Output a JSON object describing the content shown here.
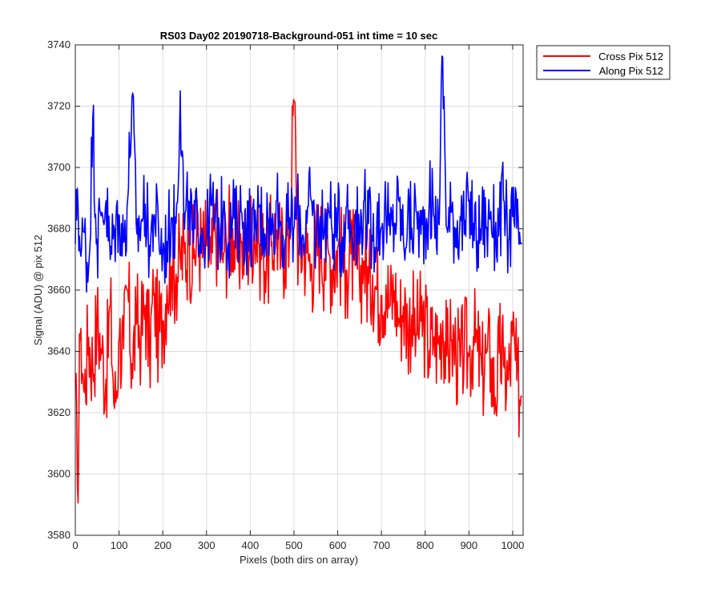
{
  "chart_data": {
    "type": "line",
    "title": "RS03 Day02 20190718-Background-051 int time = 10 sec",
    "xlabel": "Pixels (both dirs on array)",
    "ylabel": "Signal (ADU) @ pix 512",
    "xlim": [
      0,
      1024
    ],
    "ylim": [
      3580,
      3740
    ],
    "xticks": [
      0,
      100,
      200,
      300,
      400,
      500,
      600,
      700,
      800,
      900,
      1000
    ],
    "yticks": [
      3580,
      3600,
      3620,
      3640,
      3660,
      3680,
      3700,
      3720,
      3740
    ],
    "grid": true,
    "legend_position": "outside-top-right",
    "series": [
      {
        "name": "Cross Pix 512",
        "color": "#ff0000",
        "x": [
          0,
          5,
          12,
          20,
          30,
          40,
          50,
          60,
          70,
          80,
          90,
          100,
          110,
          120,
          130,
          140,
          150,
          160,
          170,
          180,
          190,
          200,
          210,
          220,
          230,
          240,
          250,
          260,
          270,
          280,
          290,
          300,
          310,
          320,
          330,
          340,
          350,
          360,
          370,
          380,
          390,
          400,
          410,
          420,
          430,
          440,
          450,
          460,
          470,
          480,
          490,
          500,
          510,
          520,
          530,
          540,
          550,
          560,
          570,
          580,
          590,
          600,
          610,
          620,
          630,
          640,
          650,
          660,
          670,
          680,
          690,
          700,
          710,
          720,
          730,
          740,
          750,
          760,
          770,
          780,
          790,
          800,
          810,
          820,
          830,
          840,
          850,
          860,
          870,
          880,
          890,
          900,
          910,
          920,
          930,
          940,
          950,
          960,
          970,
          980,
          990,
          1000,
          1010,
          1020
        ],
        "y": [
          3630,
          3595,
          3650,
          3625,
          3645,
          3635,
          3650,
          3640,
          3630,
          3655,
          3620,
          3645,
          3640,
          3660,
          3635,
          3650,
          3645,
          3655,
          3640,
          3660,
          3645,
          3650,
          3662,
          3668,
          3665,
          3670,
          3672,
          3675,
          3670,
          3678,
          3672,
          3675,
          3668,
          3680,
          3675,
          3672,
          3678,
          3680,
          3670,
          3676,
          3672,
          3678,
          3680,
          3675,
          3672,
          3670,
          3676,
          3680,
          3672,
          3675,
          3678,
          3726,
          3670,
          3675,
          3672,
          3668,
          3674,
          3676,
          3670,
          3672,
          3668,
          3674,
          3670,
          3666,
          3672,
          3668,
          3664,
          3670,
          3662,
          3665,
          3660,
          3658,
          3662,
          3655,
          3660,
          3650,
          3655,
          3648,
          3652,
          3645,
          3650,
          3648,
          3640,
          3645,
          3642,
          3650,
          3638,
          3644,
          3640,
          3635,
          3642,
          3638,
          3645,
          3640,
          3632,
          3640,
          3638,
          3625,
          3640,
          3635,
          3630,
          3645,
          3630,
          3625
        ]
      },
      {
        "name": "Along Pix 512",
        "color": "#0000ff",
        "x": [
          0,
          5,
          12,
          20,
          30,
          40,
          50,
          60,
          70,
          80,
          90,
          100,
          110,
          120,
          130,
          140,
          150,
          160,
          170,
          180,
          190,
          200,
          210,
          220,
          230,
          240,
          250,
          260,
          270,
          280,
          290,
          300,
          310,
          320,
          330,
          340,
          350,
          360,
          370,
          380,
          390,
          400,
          410,
          420,
          430,
          440,
          450,
          460,
          470,
          480,
          490,
          500,
          510,
          520,
          530,
          540,
          550,
          560,
          570,
          580,
          590,
          600,
          610,
          620,
          630,
          640,
          650,
          660,
          670,
          680,
          690,
          700,
          710,
          720,
          730,
          740,
          750,
          760,
          770,
          780,
          790,
          800,
          810,
          820,
          830,
          840,
          850,
          860,
          870,
          880,
          890,
          900,
          910,
          920,
          930,
          940,
          950,
          960,
          970,
          980,
          990,
          1000,
          1010,
          1020
        ],
        "y": [
          3675,
          3694,
          3670,
          3680,
          3665,
          3716,
          3675,
          3685,
          3690,
          3670,
          3680,
          3685,
          3675,
          3690,
          3724,
          3678,
          3682,
          3688,
          3674,
          3685,
          3680,
          3672,
          3676,
          3684,
          3680,
          3725,
          3678,
          3690,
          3675,
          3685,
          3680,
          3676,
          3688,
          3682,
          3678,
          3690,
          3675,
          3684,
          3680,
          3686,
          3678,
          3682,
          3676,
          3688,
          3680,
          3684,
          3678,
          3690,
          3682,
          3676,
          3684,
          3680,
          3686,
          3678,
          3682,
          3690,
          3676,
          3684,
          3680,
          3686,
          3678,
          3682,
          3676,
          3688,
          3680,
          3684,
          3678,
          3690,
          3682,
          3676,
          3684,
          3680,
          3686,
          3678,
          3682,
          3690,
          3676,
          3684,
          3680,
          3686,
          3678,
          3682,
          3690,
          3684,
          3680,
          3736,
          3678,
          3686,
          3680,
          3684,
          3678,
          3690,
          3682,
          3676,
          3684,
          3680,
          3686,
          3678,
          3682,
          3690,
          3676,
          3684,
          3680,
          3675
        ]
      }
    ]
  }
}
